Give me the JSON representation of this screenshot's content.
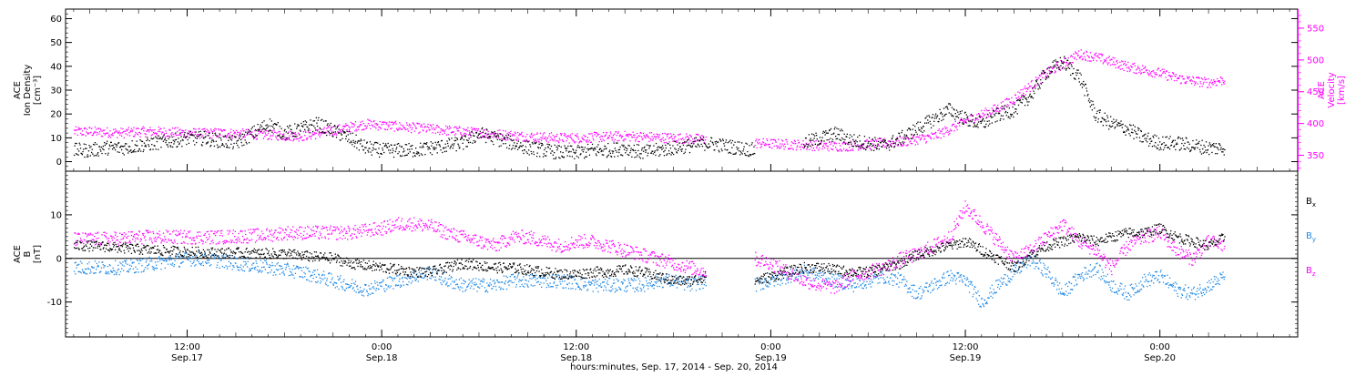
{
  "x_axis": {
    "title": "hours:minutes, Sep. 17, 2014 - Sep. 20, 2014",
    "ticks": [
      {
        "time": "12:00",
        "date": "Sep.17",
        "hours": 12
      },
      {
        "time": "0:00",
        "date": "Sep.18",
        "hours": 24
      },
      {
        "time": "12:00",
        "date": "Sep.18",
        "hours": 36
      },
      {
        "time": "0:00",
        "date": "Sep.19",
        "hours": 48
      },
      {
        "time": "12:00",
        "date": "Sep.19",
        "hours": 60
      },
      {
        "time": "0:00",
        "date": "Sep.20",
        "hours": 72
      }
    ],
    "range_hours": [
      4.5,
      80.5
    ]
  },
  "colors": {
    "black": "#000000",
    "magenta": "#ff00ff",
    "blue": "#1e88e5",
    "axis": "#000000"
  },
  "chart_data": [
    {
      "type": "scatter",
      "panel": "top",
      "title": "",
      "left_axis": {
        "label_lines": [
          "ACE",
          "Ion Density",
          "[cm⁻³]"
        ],
        "ticks": [
          0,
          10,
          20,
          30,
          40,
          50,
          60
        ],
        "range": [
          -4,
          64
        ]
      },
      "right_axis": {
        "label_lines": [
          "ACE",
          "Velocity",
          "[km/s]"
        ],
        "ticks": [
          350,
          400,
          450,
          500,
          550
        ],
        "range": [
          325,
          580
        ]
      },
      "series": [
        {
          "key": "density",
          "axis": "left",
          "color": "#000000",
          "x": [
            5,
            6,
            7,
            8,
            9,
            10,
            11,
            12,
            13,
            14,
            15,
            16,
            17,
            18,
            19,
            20,
            21,
            22,
            23,
            24,
            25,
            26,
            27,
            28,
            29,
            30,
            31,
            32,
            33,
            34,
            35,
            36,
            37,
            38,
            39,
            40,
            41,
            42,
            43,
            44,
            45,
            46,
            47,
            48,
            49,
            50,
            51,
            52,
            53,
            54,
            55,
            56,
            57,
            58,
            59,
            60,
            61,
            62,
            63,
            64,
            65,
            66,
            67,
            68,
            69,
            70,
            71,
            72,
            73,
            74,
            75,
            76
          ],
          "y": [
            5,
            5,
            6,
            6,
            7,
            8,
            9,
            10,
            10,
            9,
            8,
            12,
            16,
            12,
            14,
            16,
            13,
            10,
            6,
            5,
            5,
            5,
            6,
            7,
            8,
            12,
            10,
            8,
            6,
            5,
            4,
            4,
            5,
            5,
            6,
            4,
            5,
            6,
            7,
            8,
            7,
            6,
            5,
            null,
            null,
            8,
            10,
            12,
            9,
            8,
            7,
            10,
            14,
            18,
            22,
            18,
            16,
            20,
            22,
            28,
            38,
            42,
            36,
            20,
            16,
            14,
            10,
            8,
            8,
            7,
            6,
            6
          ]
        },
        {
          "key": "velocity",
          "axis": "right",
          "color": "#ff00ff",
          "x": [
            5,
            6,
            7,
            8,
            9,
            10,
            11,
            12,
            13,
            14,
            15,
            16,
            17,
            18,
            19,
            20,
            21,
            22,
            23,
            24,
            25,
            26,
            27,
            28,
            29,
            30,
            31,
            32,
            33,
            34,
            35,
            36,
            37,
            38,
            39,
            40,
            41,
            42,
            43,
            44,
            45,
            46,
            47,
            48,
            49,
            50,
            51,
            52,
            53,
            54,
            55,
            56,
            57,
            58,
            59,
            60,
            61,
            62,
            63,
            64,
            65,
            66,
            67,
            68,
            69,
            70,
            71,
            72,
            73,
            74,
            75,
            76
          ],
          "y": [
            388,
            388,
            387,
            386,
            388,
            388,
            387,
            386,
            385,
            386,
            385,
            384,
            383,
            382,
            381,
            385,
            390,
            395,
            400,
            398,
            396,
            394,
            392,
            390,
            388,
            386,
            384,
            382,
            380,
            379,
            378,
            378,
            379,
            380,
            381,
            380,
            379,
            378,
            377,
            376,
            null,
            null,
            370,
            369,
            368,
            367,
            366,
            365,
            366,
            368,
            370,
            372,
            376,
            380,
            392,
            405,
            415,
            425,
            440,
            460,
            480,
            495,
            510,
            505,
            498,
            490,
            485,
            480,
            472,
            468,
            465,
            470
          ]
        }
      ]
    },
    {
      "type": "scatter",
      "panel": "bottom",
      "title": "",
      "left_axis": {
        "label_lines": [
          "ACE",
          "B",
          "[nT]"
        ],
        "ticks": [
          -10,
          0,
          10
        ],
        "range": [
          -18,
          20
        ]
      },
      "reference_line": 0,
      "series": [
        {
          "key": "Bx",
          "name": "Bx",
          "color": "#000000",
          "x": [
            5,
            6,
            7,
            8,
            9,
            10,
            11,
            12,
            13,
            14,
            15,
            16,
            17,
            18,
            19,
            20,
            21,
            22,
            23,
            24,
            25,
            26,
            27,
            28,
            29,
            30,
            31,
            32,
            33,
            34,
            35,
            36,
            37,
            38,
            39,
            40,
            41,
            42,
            43,
            44,
            45,
            46,
            47,
            48,
            49,
            50,
            51,
            52,
            53,
            54,
            55,
            56,
            57,
            58,
            59,
            60,
            61,
            62,
            63,
            64,
            65,
            66,
            67,
            68,
            69,
            70,
            71,
            72,
            73,
            74,
            75,
            76
          ],
          "y": [
            3,
            3,
            2.8,
            2.5,
            2.2,
            2,
            1.8,
            1.6,
            1.5,
            1.4,
            1.4,
            1.3,
            1.2,
            1.2,
            0.8,
            0.4,
            0.2,
            -1,
            -1.5,
            -2,
            -2.5,
            -3,
            -3,
            -2,
            -1,
            -1.5,
            -2,
            -2,
            -2.5,
            -3,
            -3.5,
            -3.5,
            -3,
            -3,
            -2.5,
            -3,
            -4,
            -5,
            -5,
            -4,
            null,
            null,
            -5,
            -4,
            -3,
            -2,
            -2,
            -2.5,
            -3,
            -3,
            -2,
            -1,
            1,
            2,
            3,
            4,
            2,
            0,
            -2,
            1,
            3,
            4,
            5,
            4,
            5,
            6,
            6,
            7,
            5,
            4,
            3,
            5
          ]
        },
        {
          "key": "By",
          "name": "By",
          "color": "#1e88e5",
          "x": [
            5,
            6,
            7,
            8,
            9,
            10,
            11,
            12,
            13,
            14,
            15,
            16,
            17,
            18,
            19,
            20,
            21,
            22,
            23,
            24,
            25,
            26,
            27,
            28,
            29,
            30,
            31,
            32,
            33,
            34,
            35,
            36,
            37,
            38,
            39,
            40,
            41,
            42,
            43,
            44,
            45,
            46,
            47,
            48,
            49,
            50,
            51,
            52,
            53,
            54,
            55,
            56,
            57,
            58,
            59,
            60,
            61,
            62,
            63,
            64,
            65,
            66,
            67,
            68,
            69,
            70,
            71,
            72,
            73,
            74,
            75,
            76
          ],
          "y": [
            -2,
            -2,
            -2,
            -2,
            -1.5,
            -1,
            -0.5,
            0,
            0,
            -0.5,
            -1,
            -1.5,
            -2,
            -2.5,
            -3,
            -4,
            -5,
            -6,
            -7,
            -6,
            -5,
            -4,
            -3,
            -5,
            -6,
            -6,
            -6,
            -5,
            -5,
            -5,
            -5,
            -5.5,
            -6,
            -6,
            -6,
            -6,
            -5,
            -5,
            -6,
            -5,
            null,
            null,
            -6,
            -5,
            -4,
            -3,
            -4,
            -5,
            -6,
            -5,
            -4,
            -5,
            -8,
            -6,
            -4,
            -5,
            -10,
            -6,
            -3,
            0,
            -3,
            -8,
            -4,
            -2,
            -6,
            -8,
            -5,
            -4,
            -7,
            -8,
            -6,
            -4
          ]
        },
        {
          "key": "Bz",
          "name": "Bz",
          "color": "#ff00ff",
          "x": [
            5,
            6,
            7,
            8,
            9,
            10,
            11,
            12,
            13,
            14,
            15,
            16,
            17,
            18,
            19,
            20,
            21,
            22,
            23,
            24,
            25,
            26,
            27,
            28,
            29,
            30,
            31,
            32,
            33,
            34,
            35,
            36,
            37,
            38,
            39,
            40,
            41,
            42,
            43,
            44,
            45,
            46,
            47,
            48,
            49,
            50,
            51,
            52,
            53,
            54,
            55,
            56,
            57,
            58,
            59,
            60,
            61,
            62,
            63,
            64,
            65,
            66,
            67,
            68,
            69,
            70,
            71,
            72,
            73,
            74,
            75,
            76
          ],
          "y": [
            4.5,
            4.5,
            4.6,
            4.7,
            5,
            5,
            5,
            5,
            5,
            5,
            5.2,
            5.3,
            5.5,
            6,
            6,
            6,
            6,
            6,
            6.5,
            7,
            8,
            8,
            7.5,
            6,
            5,
            4,
            3,
            5,
            5,
            4,
            3,
            4,
            4,
            3,
            2,
            1,
            0,
            -1,
            -2,
            -3,
            null,
            null,
            0,
            -1,
            -3,
            -5,
            -6,
            -6.5,
            -4,
            -3,
            -2,
            0,
            1,
            3,
            5,
            12,
            8,
            4,
            0,
            2,
            5,
            8,
            4,
            2,
            -2,
            3,
            5,
            6,
            2,
            0,
            4,
            3
          ]
        }
      ],
      "legend": {
        "placement": "right"
      }
    }
  ]
}
